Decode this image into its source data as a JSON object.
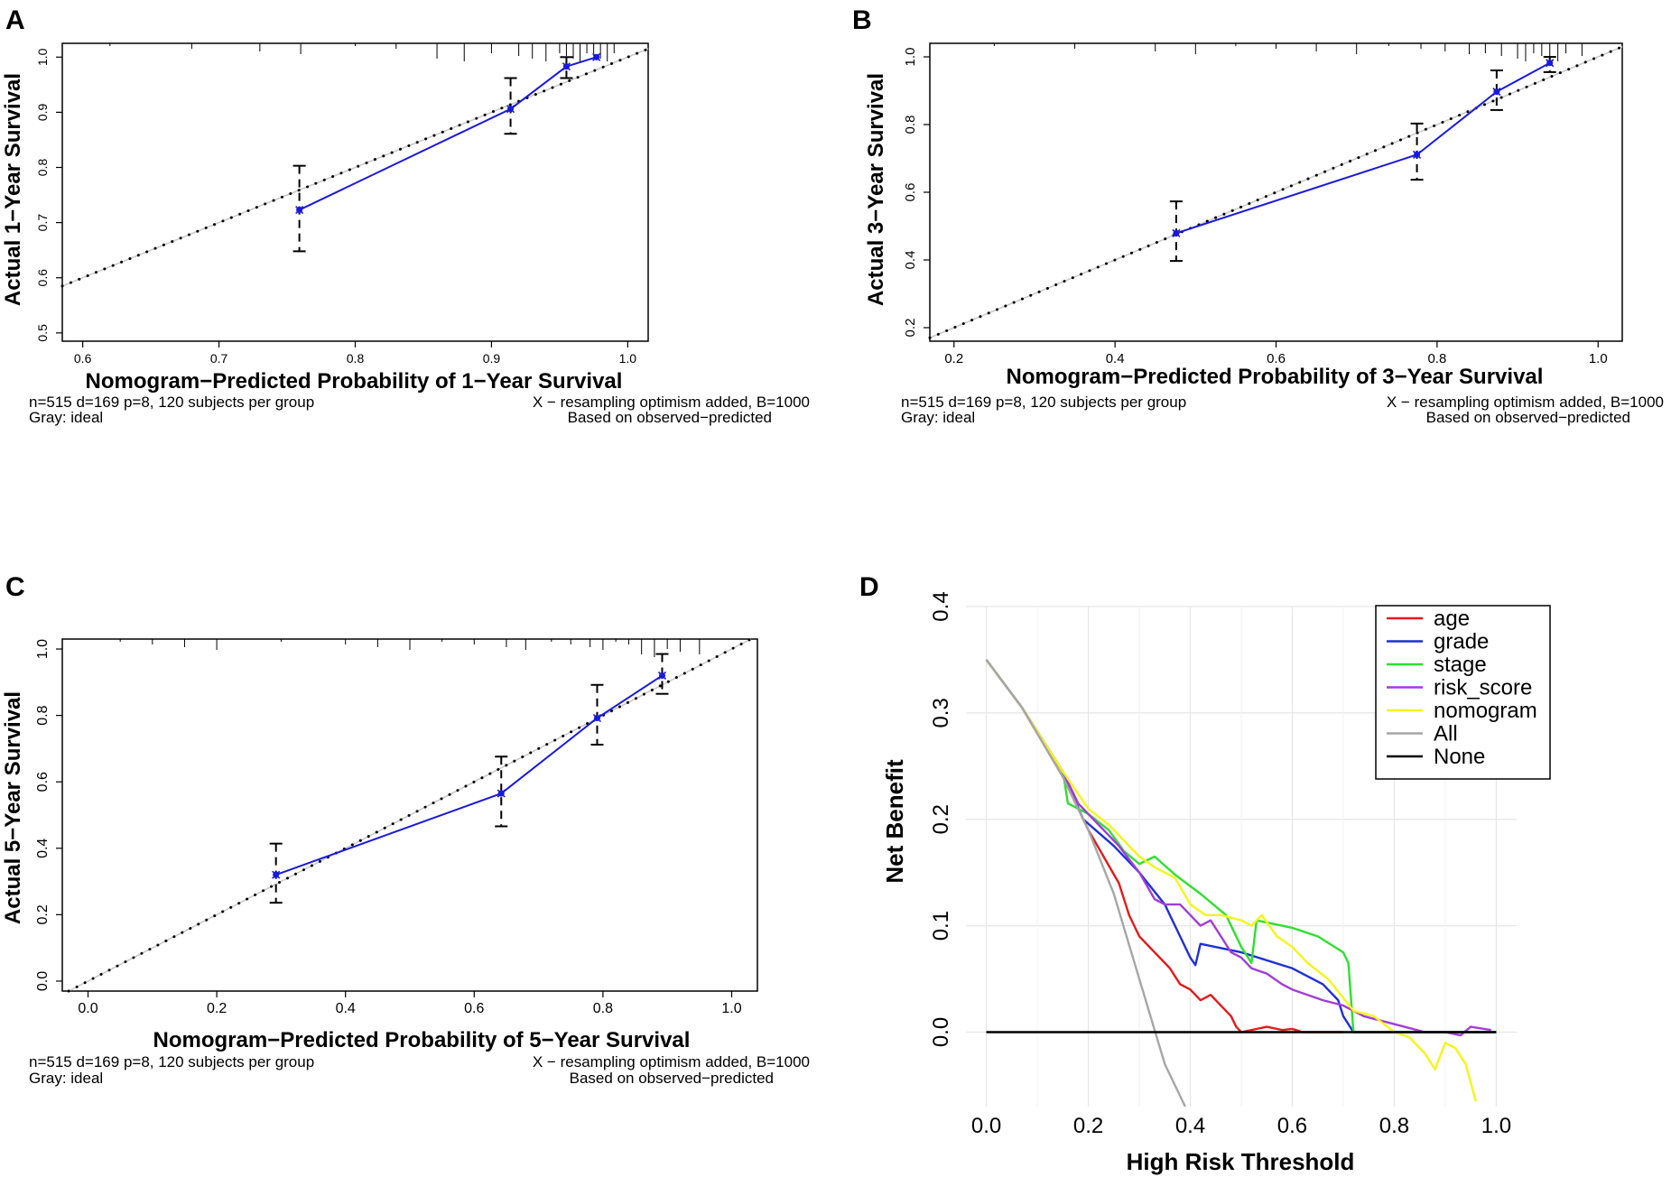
{
  "colors": {
    "fit_line": "#1a1adb",
    "ideal": "#000000",
    "age": "#e41a1c",
    "grade": "#1f2fd6",
    "stage": "#2ee02e",
    "risk_score": "#a23cd8",
    "nomogram": "#f5f51a",
    "all": "#a6a6a6",
    "none": "#000000",
    "grid": "#e6e6e6"
  },
  "chart_data": [
    {
      "panel": "A",
      "type": "line",
      "title": "",
      "xlabel": "Nomogram−Predicted Probability of 1−Year Survival",
      "ylabel": "Actual 1−Year Survival",
      "xlim": [
        0.585,
        1.015
      ],
      "ylim": [
        0.485,
        1.025
      ],
      "xticks": [
        0.6,
        0.7,
        0.8,
        0.9,
        1.0
      ],
      "xtick_labels": [
        "0.6",
        "0.7",
        "0.8",
        "0.9",
        "1.0"
      ],
      "yticks": [
        0.5,
        0.6,
        0.7,
        0.8,
        0.9,
        1.0
      ],
      "ytick_labels": [
        "0.5",
        "0.6",
        "0.7",
        "0.8",
        "0.9",
        "1.0"
      ],
      "points": [
        {
          "x": 0.759,
          "y": 0.723,
          "lo": 0.648,
          "hi": 0.803
        },
        {
          "x": 0.914,
          "y": 0.906,
          "lo": 0.861,
          "hi": 0.962
        },
        {
          "x": 0.955,
          "y": 0.983,
          "lo": 0.962,
          "hi": 1.0
        },
        {
          "x": 0.977,
          "y": 1.0,
          "lo": 1.0,
          "hi": 1.0
        }
      ],
      "ideal_line": true,
      "footer": {
        "left_1": "n=515 d=169 p=8, 120 subjects per group",
        "left_2": "Gray: ideal",
        "right_1": "X − resampling optimism added, B=1000",
        "right_2": "Based on observed−predicted"
      }
    },
    {
      "panel": "B",
      "type": "line",
      "title": "",
      "xlabel": "Nomogram−Predicted Probability of 3−Year Survival",
      "ylabel": "Actual 3−Year Survival",
      "xlim": [
        0.17,
        1.03
      ],
      "ylim": [
        0.16,
        1.04
      ],
      "xticks": [
        0.2,
        0.4,
        0.6,
        0.8,
        1.0
      ],
      "xtick_labels": [
        "0.2",
        "0.4",
        "0.6",
        "0.8",
        "1.0"
      ],
      "yticks": [
        0.2,
        0.4,
        0.6,
        0.8,
        1.0
      ],
      "ytick_labels": [
        "0.2",
        "0.4",
        "0.6",
        "0.8",
        "1.0"
      ],
      "points": [
        {
          "x": 0.476,
          "y": 0.479,
          "lo": 0.397,
          "hi": 0.573
        },
        {
          "x": 0.775,
          "y": 0.711,
          "lo": 0.637,
          "hi": 0.803
        },
        {
          "x": 0.874,
          "y": 0.897,
          "lo": 0.843,
          "hi": 0.96
        },
        {
          "x": 0.94,
          "y": 0.982,
          "lo": 0.955,
          "hi": 1.0
        }
      ],
      "ideal_line": true,
      "footer": {
        "left_1": "n=515 d=169 p=8, 120 subjects per group",
        "left_2": "Gray: ideal",
        "right_1": "X − resampling optimism added, B=1000",
        "right_2": "Based on observed−predicted"
      }
    },
    {
      "panel": "C",
      "type": "line",
      "title": "",
      "xlabel": "Nomogram−Predicted Probability of 5−Year Survival",
      "ylabel": "Actual 5−Year Survival",
      "xlim": [
        -0.04,
        1.04
      ],
      "ylim": [
        -0.03,
        1.03
      ],
      "xticks": [
        0.0,
        0.2,
        0.4,
        0.6,
        0.8,
        1.0
      ],
      "xtick_labels": [
        "0.0",
        "0.2",
        "0.4",
        "0.6",
        "0.8",
        "1.0"
      ],
      "yticks": [
        0.0,
        0.2,
        0.4,
        0.6,
        0.8,
        1.0
      ],
      "ytick_labels": [
        "0.0",
        "0.2",
        "0.4",
        "0.6",
        "0.8",
        "1.0"
      ],
      "points": [
        {
          "x": 0.292,
          "y": 0.32,
          "lo": 0.236,
          "hi": 0.414
        },
        {
          "x": 0.642,
          "y": 0.565,
          "lo": 0.466,
          "hi": 0.676
        },
        {
          "x": 0.791,
          "y": 0.792,
          "lo": 0.712,
          "hi": 0.892
        },
        {
          "x": 0.892,
          "y": 0.92,
          "lo": 0.865,
          "hi": 0.985
        }
      ],
      "ideal_line": true,
      "footer": {
        "left_1": "n=515 d=169 p=8, 120 subjects per group",
        "left_2": "Gray: ideal",
        "right_1": "X − resampling optimism added, B=1000",
        "right_2": "Based on observed−predicted"
      }
    },
    {
      "panel": "D",
      "type": "line",
      "title": "",
      "xlabel": "High Risk Threshold",
      "ylabel": "Net Benefit",
      "xlim": [
        -0.04,
        1.04
      ],
      "ylim": [
        -0.07,
        0.4
      ],
      "grid": true,
      "legend_position": "top-right",
      "xticks": [
        0.0,
        0.2,
        0.4,
        0.6,
        0.8,
        1.0
      ],
      "xtick_labels": [
        "0.0",
        "0.2",
        "0.4",
        "0.6",
        "0.8",
        "1.0"
      ],
      "yticks": [
        0.0,
        0.1,
        0.2,
        0.3,
        0.4
      ],
      "ytick_labels": [
        "0.0",
        "0.1",
        "0.2",
        "0.3",
        "0.4"
      ],
      "series": [
        {
          "name": "age",
          "color_key": "age",
          "x": [
            0.0,
            0.07,
            0.15,
            0.2,
            0.23,
            0.26,
            0.28,
            0.3,
            0.33,
            0.36,
            0.38,
            0.4,
            0.42,
            0.44,
            0.46,
            0.48,
            0.49,
            0.5,
            0.52,
            0.55,
            0.58,
            0.6,
            0.62,
            0.7
          ],
          "y": [
            0.35,
            0.305,
            0.24,
            0.19,
            0.165,
            0.14,
            0.11,
            0.09,
            0.075,
            0.06,
            0.045,
            0.04,
            0.03,
            0.035,
            0.025,
            0.015,
            0.005,
            0.0,
            0.002,
            0.005,
            0.002,
            0.003,
            0.0,
            0.0
          ]
        },
        {
          "name": "grade",
          "color_key": "grade",
          "x": [
            0.0,
            0.07,
            0.15,
            0.19,
            0.25,
            0.3,
            0.35,
            0.4,
            0.41,
            0.42,
            0.5,
            0.6,
            0.66,
            0.69,
            0.7,
            0.72,
            1.0
          ],
          "y": [
            0.35,
            0.305,
            0.245,
            0.2,
            0.175,
            0.15,
            0.12,
            0.07,
            0.063,
            0.083,
            0.075,
            0.06,
            0.045,
            0.03,
            0.015,
            0.0,
            0.0
          ]
        },
        {
          "name": "stage",
          "color_key": "stage",
          "x": [
            0.0,
            0.07,
            0.15,
            0.16,
            0.2,
            0.24,
            0.27,
            0.3,
            0.33,
            0.37,
            0.42,
            0.47,
            0.5,
            0.52,
            0.53,
            0.6,
            0.65,
            0.7,
            0.71,
            0.72,
            1.0
          ],
          "y": [
            0.35,
            0.305,
            0.245,
            0.215,
            0.205,
            0.19,
            0.17,
            0.158,
            0.165,
            0.148,
            0.13,
            0.11,
            0.08,
            0.065,
            0.105,
            0.098,
            0.09,
            0.075,
            0.065,
            0.0,
            0.0
          ]
        },
        {
          "name": "risk_score",
          "color_key": "risk_score",
          "x": [
            0.0,
            0.07,
            0.15,
            0.18,
            0.22,
            0.26,
            0.3,
            0.33,
            0.35,
            0.38,
            0.4,
            0.42,
            0.44,
            0.46,
            0.48,
            0.5,
            0.52,
            0.55,
            0.58,
            0.6,
            0.63,
            0.66,
            0.7,
            0.74,
            0.78,
            0.82,
            0.86,
            0.9,
            0.93,
            0.95,
            0.99
          ],
          "y": [
            0.35,
            0.305,
            0.245,
            0.215,
            0.195,
            0.175,
            0.15,
            0.125,
            0.12,
            0.12,
            0.11,
            0.1,
            0.105,
            0.09,
            0.075,
            0.07,
            0.06,
            0.055,
            0.045,
            0.04,
            0.035,
            0.03,
            0.025,
            0.015,
            0.01,
            0.005,
            0.0,
            0.0,
            -0.003,
            0.005,
            0.002
          ]
        },
        {
          "name": "nomogram",
          "color_key": "nomogram",
          "x": [
            0.0,
            0.07,
            0.15,
            0.2,
            0.24,
            0.27,
            0.3,
            0.33,
            0.37,
            0.4,
            0.43,
            0.46,
            0.5,
            0.52,
            0.54,
            0.57,
            0.6,
            0.63,
            0.67,
            0.72,
            0.76,
            0.8,
            0.83,
            0.86,
            0.88,
            0.9,
            0.92,
            0.94,
            0.96
          ],
          "y": [
            0.35,
            0.305,
            0.245,
            0.21,
            0.195,
            0.18,
            0.165,
            0.155,
            0.145,
            0.12,
            0.11,
            0.11,
            0.105,
            0.1,
            0.11,
            0.09,
            0.08,
            0.065,
            0.05,
            0.02,
            0.015,
            0.0,
            -0.005,
            -0.02,
            -0.035,
            -0.01,
            -0.015,
            -0.03,
            -0.065
          ]
        },
        {
          "name": "All",
          "color_key": "all",
          "x": [
            0.0,
            0.07,
            0.15,
            0.2,
            0.25,
            0.3,
            0.35,
            0.39
          ],
          "y": [
            0.35,
            0.305,
            0.24,
            0.19,
            0.13,
            0.05,
            -0.03,
            -0.07
          ]
        },
        {
          "name": "None",
          "color_key": "none",
          "x": [
            0.0,
            1.0
          ],
          "y": [
            0.0,
            0.0
          ]
        }
      ]
    }
  ]
}
